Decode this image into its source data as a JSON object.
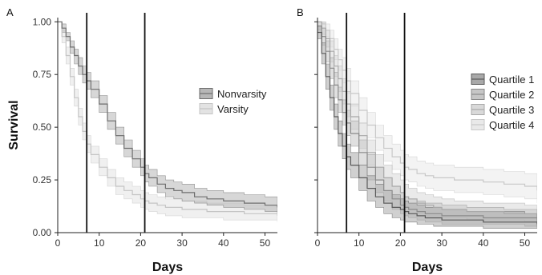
{
  "chart_data": [
    {
      "panel_label": "A",
      "type": "line",
      "step": true,
      "xlabel": "Days",
      "ylabel": "Survival",
      "xlim": [
        0,
        53
      ],
      "ylim": [
        0,
        1.02
      ],
      "xticks": [
        "0",
        "10",
        "20",
        "30",
        "40",
        "50"
      ],
      "yticks": [
        "0.00",
        "0.25",
        "0.50",
        "0.75",
        "1.00"
      ],
      "vlines": [
        7,
        21
      ],
      "legend": "right",
      "series": [
        {
          "name": "Nonvarsity",
          "color": "#6e6e6e",
          "band_color": "#b7b7b7",
          "x": [
            0,
            1,
            2,
            3,
            4,
            5,
            6,
            7,
            8,
            10,
            12,
            14,
            16,
            18,
            20,
            21,
            22,
            24,
            26,
            28,
            30,
            33,
            36,
            40,
            45,
            50,
            53
          ],
          "y": [
            1.0,
            0.97,
            0.93,
            0.88,
            0.84,
            0.79,
            0.75,
            0.72,
            0.68,
            0.61,
            0.53,
            0.46,
            0.4,
            0.35,
            0.31,
            0.28,
            0.26,
            0.23,
            0.21,
            0.2,
            0.19,
            0.17,
            0.16,
            0.15,
            0.14,
            0.13,
            0.12
          ],
          "lower": [
            1.0,
            0.95,
            0.91,
            0.85,
            0.8,
            0.75,
            0.71,
            0.68,
            0.64,
            0.57,
            0.49,
            0.42,
            0.36,
            0.31,
            0.27,
            0.24,
            0.22,
            0.19,
            0.17,
            0.16,
            0.15,
            0.14,
            0.13,
            0.12,
            0.11,
            0.1,
            0.09
          ],
          "upper": [
            1.0,
            0.99,
            0.95,
            0.91,
            0.87,
            0.83,
            0.79,
            0.76,
            0.72,
            0.65,
            0.57,
            0.5,
            0.44,
            0.39,
            0.35,
            0.32,
            0.3,
            0.27,
            0.25,
            0.24,
            0.23,
            0.21,
            0.2,
            0.19,
            0.18,
            0.17,
            0.15
          ]
        },
        {
          "name": "Varsity",
          "color": "#c4c4c4",
          "band_color": "#e3e3e3",
          "x": [
            0,
            1,
            2,
            3,
            4,
            5,
            6,
            7,
            8,
            10,
            12,
            14,
            16,
            18,
            20,
            21,
            22,
            24,
            26,
            28,
            30,
            33,
            36,
            40,
            45,
            50,
            53
          ],
          "y": [
            1.0,
            0.93,
            0.84,
            0.74,
            0.64,
            0.55,
            0.48,
            0.42,
            0.37,
            0.31,
            0.26,
            0.22,
            0.2,
            0.18,
            0.16,
            0.15,
            0.14,
            0.13,
            0.12,
            0.12,
            0.11,
            0.11,
            0.1,
            0.1,
            0.09,
            0.09,
            0.08
          ],
          "lower": [
            1.0,
            0.9,
            0.8,
            0.7,
            0.6,
            0.51,
            0.44,
            0.38,
            0.33,
            0.27,
            0.22,
            0.18,
            0.16,
            0.14,
            0.12,
            0.11,
            0.1,
            0.09,
            0.08,
            0.08,
            0.07,
            0.07,
            0.07,
            0.06,
            0.06,
            0.06,
            0.05
          ],
          "upper": [
            1.0,
            0.96,
            0.88,
            0.78,
            0.68,
            0.59,
            0.52,
            0.46,
            0.41,
            0.35,
            0.3,
            0.26,
            0.24,
            0.22,
            0.2,
            0.19,
            0.18,
            0.17,
            0.16,
            0.16,
            0.15,
            0.15,
            0.14,
            0.14,
            0.13,
            0.13,
            0.12
          ]
        }
      ]
    },
    {
      "panel_label": "B",
      "type": "line",
      "step": true,
      "xlabel": "Days",
      "ylabel": "",
      "xlim": [
        0,
        53
      ],
      "ylim": [
        0,
        1.02
      ],
      "xticks": [
        "0",
        "10",
        "20",
        "30",
        "40",
        "50"
      ],
      "yticks": [],
      "vlines": [
        7,
        21
      ],
      "legend": "top-right",
      "series": [
        {
          "name": "Quartile 1",
          "color": "#5a5a5a",
          "band_color": "#a9a9a9",
          "x": [
            0,
            1,
            2,
            3,
            4,
            5,
            6,
            7,
            8,
            10,
            12,
            14,
            16,
            18,
            20,
            21,
            22,
            24,
            26,
            28,
            30,
            33,
            36,
            40,
            45,
            50,
            53
          ],
          "y": [
            0.95,
            0.85,
            0.74,
            0.64,
            0.55,
            0.47,
            0.41,
            0.36,
            0.32,
            0.26,
            0.21,
            0.17,
            0.14,
            0.12,
            0.11,
            0.1,
            0.09,
            0.08,
            0.07,
            0.07,
            0.06,
            0.06,
            0.06,
            0.05,
            0.05,
            0.05,
            0.04
          ],
          "lower": [
            0.92,
            0.8,
            0.68,
            0.58,
            0.49,
            0.41,
            0.35,
            0.3,
            0.26,
            0.2,
            0.15,
            0.12,
            0.09,
            0.07,
            0.06,
            0.05,
            0.05,
            0.04,
            0.04,
            0.03,
            0.03,
            0.03,
            0.03,
            0.02,
            0.02,
            0.02,
            0.02
          ],
          "upper": [
            0.98,
            0.9,
            0.8,
            0.7,
            0.61,
            0.53,
            0.47,
            0.42,
            0.38,
            0.32,
            0.27,
            0.23,
            0.2,
            0.18,
            0.16,
            0.15,
            0.14,
            0.13,
            0.12,
            0.12,
            0.11,
            0.11,
            0.1,
            0.1,
            0.1,
            0.09,
            0.09
          ]
        },
        {
          "name": "Quartile 2",
          "color": "#8a8a8a",
          "band_color": "#c6c6c6",
          "x": [
            0,
            1,
            2,
            3,
            4,
            5,
            6,
            7,
            8,
            10,
            12,
            14,
            16,
            18,
            20,
            21,
            22,
            24,
            26,
            28,
            30,
            33,
            36,
            40,
            45,
            50,
            53
          ],
          "y": [
            0.98,
            0.93,
            0.86,
            0.78,
            0.7,
            0.63,
            0.57,
            0.52,
            0.47,
            0.38,
            0.31,
            0.25,
            0.2,
            0.16,
            0.13,
            0.12,
            0.11,
            0.1,
            0.09,
            0.09,
            0.08,
            0.08,
            0.08,
            0.07,
            0.07,
            0.07,
            0.06
          ],
          "lower": [
            0.96,
            0.89,
            0.81,
            0.73,
            0.64,
            0.57,
            0.51,
            0.46,
            0.41,
            0.32,
            0.25,
            0.19,
            0.15,
            0.11,
            0.09,
            0.08,
            0.07,
            0.06,
            0.05,
            0.05,
            0.04,
            0.04,
            0.04,
            0.04,
            0.04,
            0.03,
            0.03
          ],
          "upper": [
            1.0,
            0.97,
            0.91,
            0.83,
            0.76,
            0.69,
            0.63,
            0.58,
            0.53,
            0.44,
            0.37,
            0.31,
            0.26,
            0.22,
            0.19,
            0.17,
            0.16,
            0.15,
            0.14,
            0.14,
            0.13,
            0.13,
            0.12,
            0.12,
            0.11,
            0.11,
            0.1
          ]
        },
        {
          "name": "Quartile 3",
          "color": "#a9a9a9",
          "band_color": "#d9d9d9",
          "x": [
            0,
            1,
            2,
            3,
            4,
            5,
            6,
            7,
            8,
            10,
            12,
            14,
            16,
            18,
            20,
            21,
            22,
            24,
            26,
            28,
            30,
            33,
            36,
            40,
            45,
            50,
            53
          ],
          "y": [
            1.0,
            0.97,
            0.92,
            0.86,
            0.79,
            0.73,
            0.67,
            0.61,
            0.55,
            0.46,
            0.38,
            0.31,
            0.26,
            0.22,
            0.19,
            0.17,
            0.16,
            0.14,
            0.13,
            0.12,
            0.11,
            0.11,
            0.1,
            0.1,
            0.09,
            0.09,
            0.09
          ],
          "lower": [
            1.0,
            0.94,
            0.88,
            0.81,
            0.74,
            0.67,
            0.61,
            0.55,
            0.49,
            0.4,
            0.32,
            0.25,
            0.2,
            0.16,
            0.13,
            0.12,
            0.11,
            0.09,
            0.08,
            0.08,
            0.07,
            0.07,
            0.06,
            0.06,
            0.06,
            0.05,
            0.05
          ],
          "upper": [
            1.0,
            1.0,
            0.96,
            0.91,
            0.84,
            0.79,
            0.73,
            0.67,
            0.61,
            0.52,
            0.44,
            0.37,
            0.32,
            0.28,
            0.25,
            0.23,
            0.21,
            0.19,
            0.18,
            0.17,
            0.16,
            0.15,
            0.15,
            0.14,
            0.14,
            0.13,
            0.13
          ]
        },
        {
          "name": "Quartile 4",
          "color": "#c8c8c8",
          "band_color": "#e9e9e9",
          "x": [
            0,
            1,
            2,
            3,
            4,
            5,
            6,
            7,
            8,
            10,
            12,
            14,
            16,
            18,
            20,
            21,
            22,
            24,
            26,
            28,
            30,
            33,
            36,
            40,
            45,
            50,
            53
          ],
          "y": [
            1.0,
            0.99,
            0.96,
            0.92,
            0.87,
            0.82,
            0.77,
            0.72,
            0.66,
            0.58,
            0.51,
            0.45,
            0.4,
            0.36,
            0.33,
            0.31,
            0.3,
            0.28,
            0.27,
            0.26,
            0.26,
            0.25,
            0.25,
            0.24,
            0.23,
            0.22,
            0.2
          ],
          "lower": [
            1.0,
            0.97,
            0.93,
            0.88,
            0.82,
            0.77,
            0.71,
            0.66,
            0.6,
            0.52,
            0.45,
            0.39,
            0.34,
            0.3,
            0.27,
            0.25,
            0.24,
            0.22,
            0.21,
            0.2,
            0.2,
            0.19,
            0.19,
            0.18,
            0.17,
            0.16,
            0.14
          ],
          "upper": [
            1.0,
            1.0,
            0.99,
            0.96,
            0.92,
            0.87,
            0.83,
            0.78,
            0.72,
            0.64,
            0.57,
            0.51,
            0.46,
            0.42,
            0.39,
            0.37,
            0.36,
            0.34,
            0.33,
            0.32,
            0.32,
            0.31,
            0.31,
            0.3,
            0.29,
            0.28,
            0.26
          ]
        }
      ]
    }
  ]
}
